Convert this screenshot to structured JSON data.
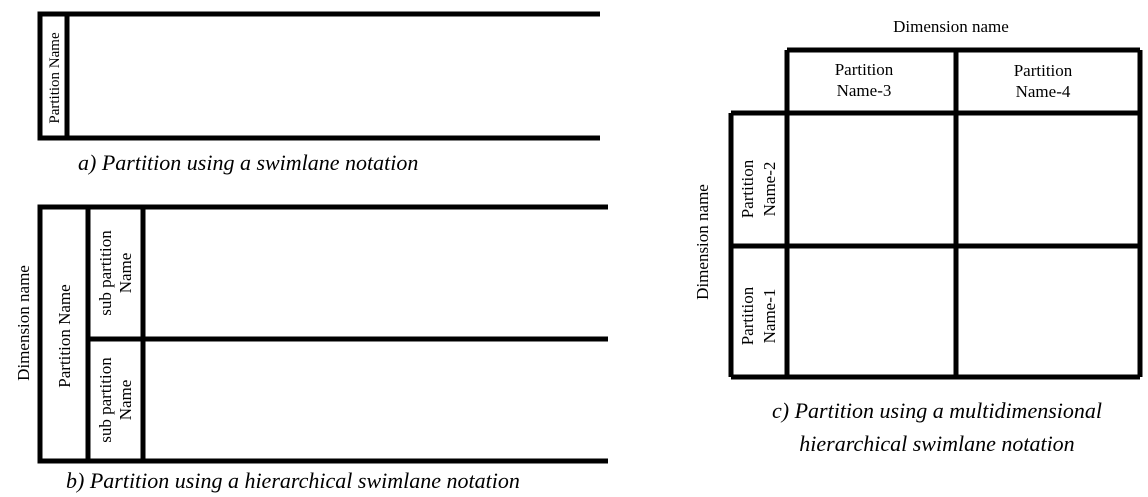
{
  "diagram_a": {
    "partition_label": "Partition Name",
    "caption": "a) Partition using a swimlane notation"
  },
  "diagram_b": {
    "dimension_label": "Dimension name",
    "partition_label": "Partition Name",
    "sub_partition_top_line1": "sub partition",
    "sub_partition_top_line2": "Name",
    "sub_partition_bottom_line1": "sub partition",
    "sub_partition_bottom_line2": "Name",
    "caption": "b) Partition using a hierarchical swimlane notation"
  },
  "diagram_c": {
    "top_dimension_label": "Dimension name",
    "left_dimension_label": "Dimension name",
    "col_headers": [
      {
        "line1": "Partition",
        "line2": "Name-3"
      },
      {
        "line1": "Partition",
        "line2": "Name-4"
      }
    ],
    "row_headers": [
      {
        "line1": "Partition",
        "line2": "Name-2"
      },
      {
        "line1": "Partition",
        "line2": "Name-1"
      }
    ],
    "caption_line1": "c) Partition using a multidimensional",
    "caption_line2": "hierarchical swimlane notation"
  }
}
